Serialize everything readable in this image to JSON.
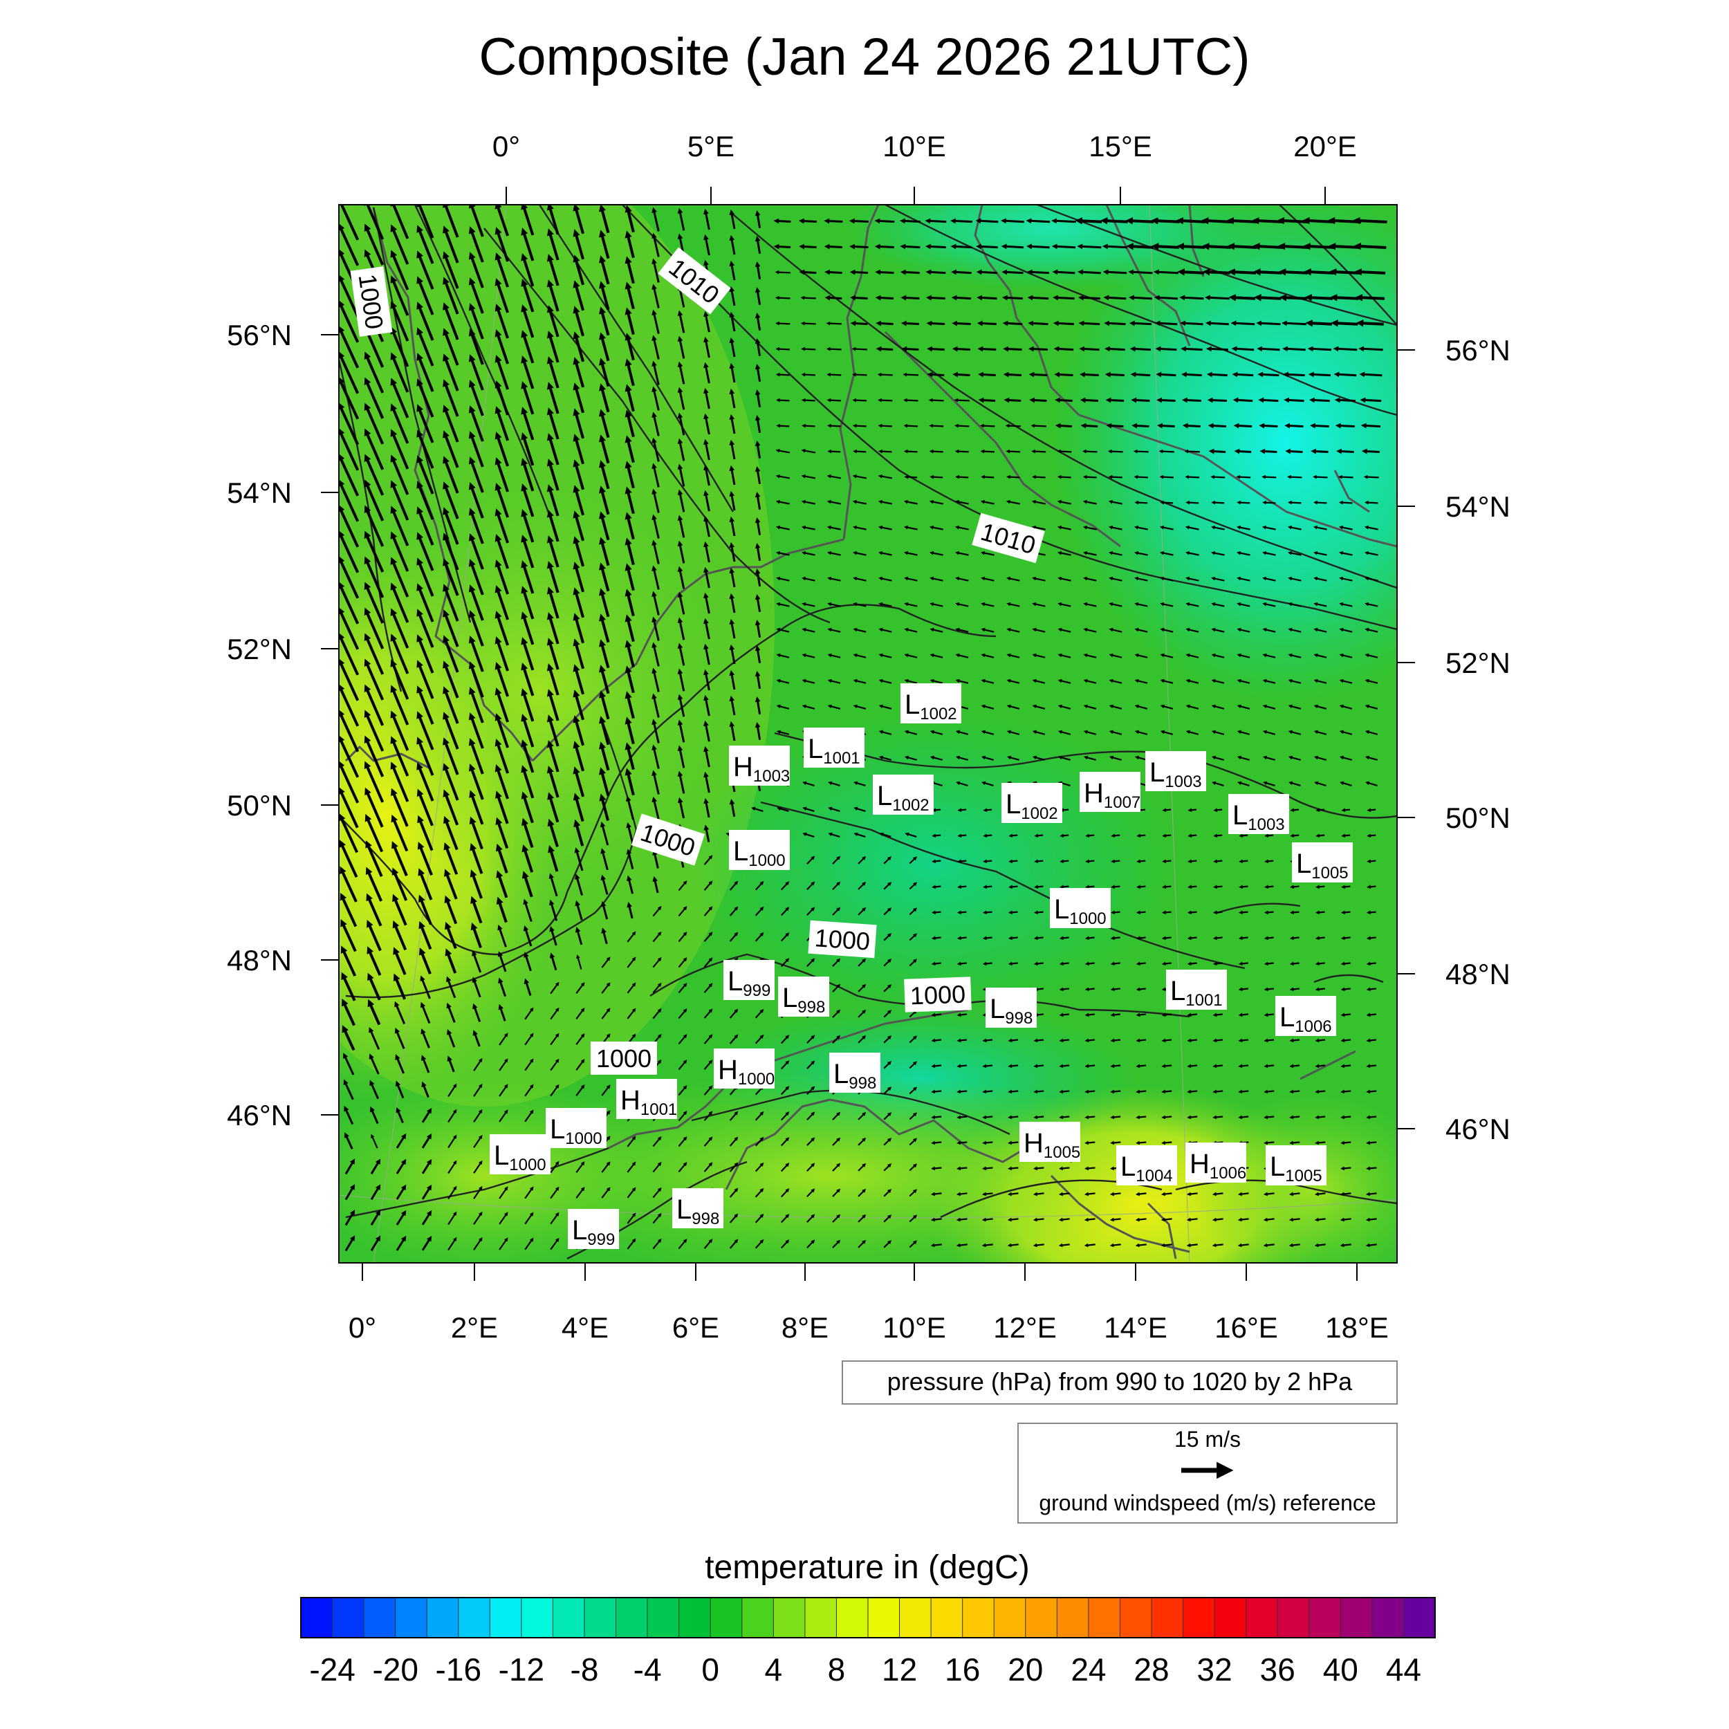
{
  "title": "Composite (Jan 24 2026 21UTC)",
  "top_lon_labels": [
    "0°",
    "5°E",
    "10°E",
    "15°E",
    "20°E"
  ],
  "bottom_lon_labels": [
    "0°",
    "2°E",
    "4°E",
    "6°E",
    "8°E",
    "10°E",
    "12°E",
    "14°E",
    "16°E",
    "18°E"
  ],
  "left_lat_labels": [
    "56°N",
    "54°N",
    "52°N",
    "50°N",
    "48°N",
    "46°N"
  ],
  "right_lat_labels": [
    "56°N",
    "54°N",
    "52°N",
    "50°N",
    "48°N",
    "46°N"
  ],
  "isobar_labels": [
    {
      "text": "1000"
    },
    {
      "text": "1010"
    },
    {
      "text": "1010"
    },
    {
      "text": "1000"
    },
    {
      "text": "1000"
    },
    {
      "text": "1000"
    },
    {
      "text": "1000"
    }
  ],
  "pressure_centers": [
    {
      "type": "L",
      "value": "1002"
    },
    {
      "type": "L",
      "value": "1001"
    },
    {
      "type": "H",
      "value": "1003"
    },
    {
      "type": "L",
      "value": "1003"
    },
    {
      "type": "L",
      "value": "1002"
    },
    {
      "type": "L",
      "value": "1002"
    },
    {
      "type": "H",
      "value": "1007"
    },
    {
      "type": "L",
      "value": "1003"
    },
    {
      "type": "L",
      "value": "1000"
    },
    {
      "type": "L",
      "value": "1005"
    },
    {
      "type": "L",
      "value": "1000"
    },
    {
      "type": "L",
      "value": "999"
    },
    {
      "type": "L",
      "value": "998"
    },
    {
      "type": "L",
      "value": "1001"
    },
    {
      "type": "L",
      "value": "998"
    },
    {
      "type": "L",
      "value": "1006"
    },
    {
      "type": "H",
      "value": "1000"
    },
    {
      "type": "L",
      "value": "998"
    },
    {
      "type": "H",
      "value": "1001"
    },
    {
      "type": "L",
      "value": "1000"
    },
    {
      "type": "L",
      "value": "1000"
    },
    {
      "type": "H",
      "value": "1005"
    },
    {
      "type": "L",
      "value": "1004"
    },
    {
      "type": "H",
      "value": "1006"
    },
    {
      "type": "L",
      "value": "1005"
    },
    {
      "type": "L",
      "value": "999"
    },
    {
      "type": "L",
      "value": "998"
    }
  ],
  "contour_info": "pressure (hPa) from 990 to 1020 by 2 hPa",
  "vector_reference": {
    "speed": "15 m/s",
    "label": "ground windspeed (m/s) reference"
  },
  "colorbar": {
    "title": "temperature in (degC)",
    "min": -26,
    "max": 46,
    "step": 2,
    "tick_labels": [
      "-24",
      "-20",
      "-16",
      "-12",
      "-8",
      "-4",
      "0",
      "4",
      "8",
      "12",
      "16",
      "20",
      "24",
      "28",
      "32",
      "36",
      "40",
      "44"
    ]
  },
  "colors": {
    "land_field": "#3dc42a",
    "warm_field": "#c8ec1c",
    "cold_field": "#0fd98a",
    "coast": "#555555",
    "isobar": "#222222"
  }
}
